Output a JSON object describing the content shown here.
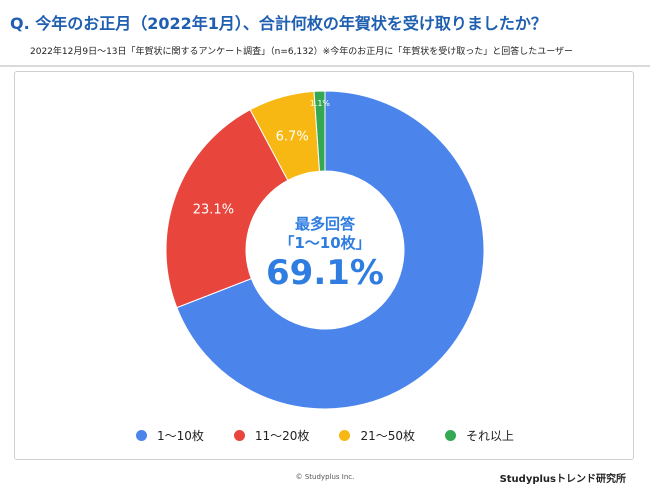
{
  "header": {
    "title": "Q. 今年のお正月（2022年1月）、合計何枚の年賀状を受け取りましたか？",
    "subtitle": "2022年12月9日〜13日「年賀状に関するアンケート調査」（n=6,132）※今年のお正月に「年賀状を受け取った」と回答したユーザー"
  },
  "chart_data": {
    "type": "pie",
    "donut": true,
    "categories": [
      "1〜10枚",
      "11〜20枚",
      "21〜50枚",
      "それ以上"
    ],
    "values": [
      69.1,
      23.1,
      6.7,
      1.1
    ],
    "value_labels": [
      "",
      "23.1%",
      "6.7%",
      "1.1%"
    ],
    "colors": [
      "#4b85ec",
      "#e8453c",
      "#f8b814",
      "#34a853"
    ],
    "legend": "bottom",
    "center_label": {
      "line1": "最多回答",
      "line2": "「1〜10枚」",
      "value": "69.1%"
    }
  },
  "footer": {
    "copyright": "© Studyplus Inc.",
    "brand": "Studyplusトレンド研究所"
  }
}
